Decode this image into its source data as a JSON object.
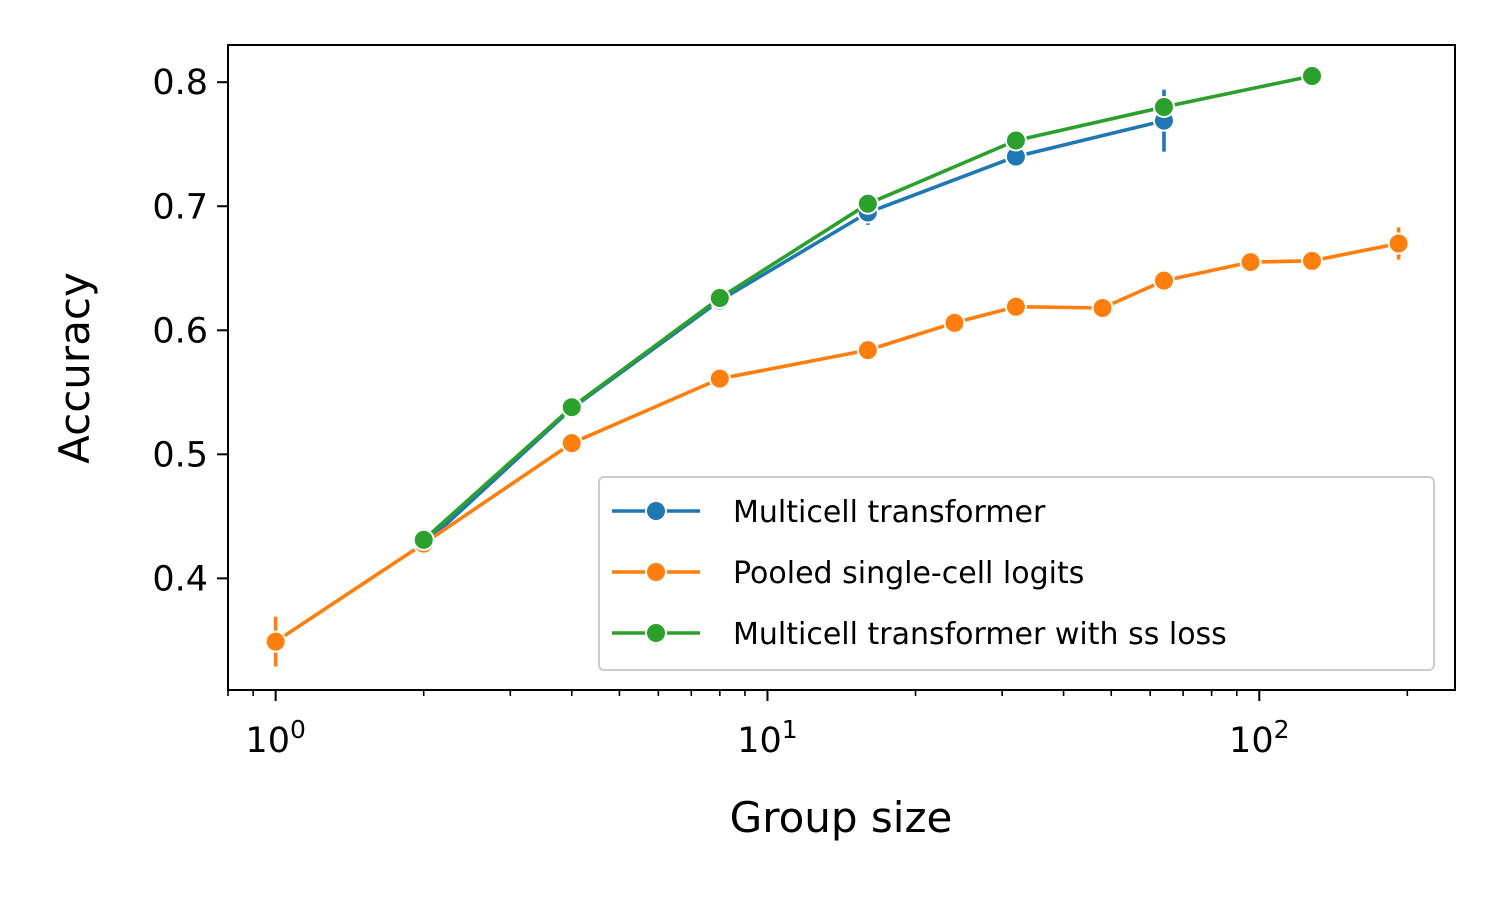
{
  "chart_data": {
    "type": "line",
    "xlabel": "Group size",
    "ylabel": "Accuracy",
    "x_scale": "log",
    "xlim": [
      0.8,
      250
    ],
    "ylim": [
      0.31,
      0.83
    ],
    "x_ticks": [
      {
        "value": 1,
        "base": "10",
        "exp": "0"
      },
      {
        "value": 10,
        "base": "10",
        "exp": "1"
      },
      {
        "value": 100,
        "base": "10",
        "exp": "2"
      }
    ],
    "y_ticks": [
      {
        "value": 0.4,
        "label": "0.4"
      },
      {
        "value": 0.5,
        "label": "0.5"
      },
      {
        "value": 0.6,
        "label": "0.6"
      },
      {
        "value": 0.7,
        "label": "0.7"
      },
      {
        "value": 0.8,
        "label": "0.8"
      }
    ],
    "legend_position": "lower right",
    "grid": false,
    "series": [
      {
        "name": "Multicell transformer",
        "color": "#1f77b4",
        "x": [
          2,
          4,
          8,
          16,
          32,
          64
        ],
        "y": [
          0.427,
          0.537,
          0.624,
          0.695,
          0.74,
          0.769
        ],
        "err": [
          0.003,
          0.003,
          0.003,
          0.01,
          0.005,
          0.025
        ]
      },
      {
        "name": "Pooled single-cell logits",
        "color": "#ff7f0e",
        "x": [
          1,
          2,
          4,
          8,
          16,
          24,
          32,
          48,
          64,
          96,
          128,
          192
        ],
        "y": [
          0.349,
          0.428,
          0.509,
          0.561,
          0.584,
          0.606,
          0.619,
          0.618,
          0.64,
          0.655,
          0.656,
          0.67
        ],
        "err": [
          0.02,
          0.003,
          0.003,
          0.003,
          0.003,
          0.003,
          0.003,
          0.003,
          0.003,
          0.003,
          0.003,
          0.013
        ]
      },
      {
        "name": "Multicell transformer with ss loss",
        "color": "#2ca02c",
        "x": [
          2,
          4,
          8,
          16,
          32,
          64,
          128
        ],
        "y": [
          0.431,
          0.538,
          0.626,
          0.702,
          0.753,
          0.78,
          0.805
        ],
        "err": [
          0.002,
          0.002,
          0.002,
          0.003,
          0.003,
          0.004,
          0.002
        ]
      }
    ]
  }
}
